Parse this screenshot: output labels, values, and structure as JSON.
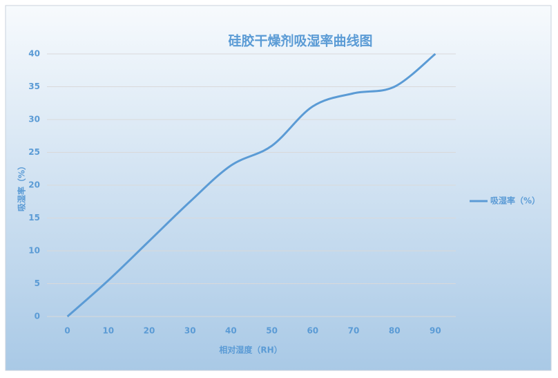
{
  "chart_data": {
    "type": "line",
    "title": "硅胶干燥剂吸湿率曲线图",
    "x_label": "相对湿度（RH）",
    "y_label": "吸湿率（%）",
    "categories": [
      0,
      10,
      20,
      30,
      40,
      50,
      60,
      70,
      80,
      90
    ],
    "series": [
      {
        "name": "吸湿率（%）",
        "color": "#5b9bd5",
        "values": [
          0,
          5.5,
          11.5,
          17.5,
          23,
          26,
          32,
          34,
          35,
          40
        ]
      }
    ],
    "ylim": [
      0,
      40
    ],
    "yticks": [
      0,
      5,
      10,
      15,
      20,
      25,
      30,
      35,
      40
    ],
    "grid": true,
    "legend": "right",
    "smooth": true
  }
}
